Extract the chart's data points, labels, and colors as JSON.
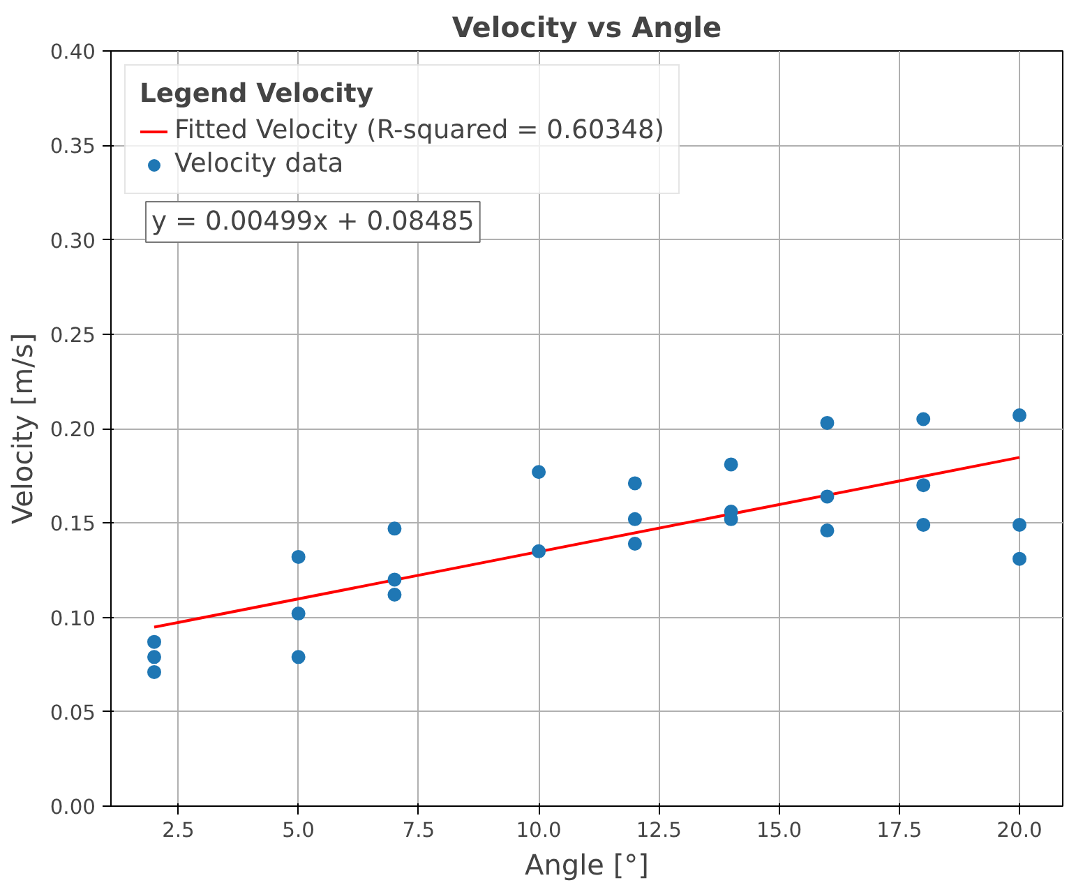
{
  "chart_data": {
    "type": "scatter",
    "title": "Velocity vs Angle",
    "xlabel": "Angle [°]",
    "ylabel": "Velocity [m/s]",
    "legend_title": "Legend Velocity",
    "series": [
      {
        "name": "Fitted Velocity (R-squared = 0.60348)",
        "type": "line",
        "color": "#ff0000",
        "x": [
          2,
          20
        ],
        "values": [
          0.0948,
          0.1847
        ]
      },
      {
        "name": "Velocity data",
        "marker": "circle",
        "color": "#1f77b4",
        "x": [
          2,
          2,
          2,
          5,
          5,
          5,
          7,
          7,
          7,
          10,
          10,
          12,
          12,
          12,
          14,
          14,
          14,
          16,
          16,
          16,
          18,
          18,
          18,
          20,
          20,
          20
        ],
        "values": [
          0.087,
          0.079,
          0.071,
          0.132,
          0.102,
          0.079,
          0.147,
          0.12,
          0.112,
          0.177,
          0.135,
          0.171,
          0.152,
          0.139,
          0.181,
          0.156,
          0.152,
          0.203,
          0.164,
          0.146,
          0.205,
          0.17,
          0.149,
          0.207,
          0.149,
          0.131
        ]
      }
    ],
    "annotations": [
      "y = 0.00499x + 0.08485"
    ],
    "xlim": [
      1.1,
      20.9
    ],
    "ylim": [
      0,
      0.4
    ],
    "xticks": [
      2.5,
      {
        "value": 5,
        "label": "5.0"
      },
      7.5,
      {
        "value": 10,
        "label": "10.0"
      },
      12.5,
      {
        "value": 15,
        "label": "15.0"
      },
      17.5,
      {
        "value": 20,
        "label": "20.0"
      }
    ],
    "yticks": [
      {
        "value": 0,
        "label": "0.00"
      },
      0.05,
      {
        "value": 0.1,
        "label": "0.10"
      },
      0.15,
      {
        "value": 0.2,
        "label": "0.20"
      },
      0.25,
      {
        "value": 0.3,
        "label": "0.30"
      },
      0.35,
      {
        "value": 0.4,
        "label": "0.40"
      }
    ],
    "grid": true,
    "legend": "top left",
    "line_style": "solid"
  }
}
